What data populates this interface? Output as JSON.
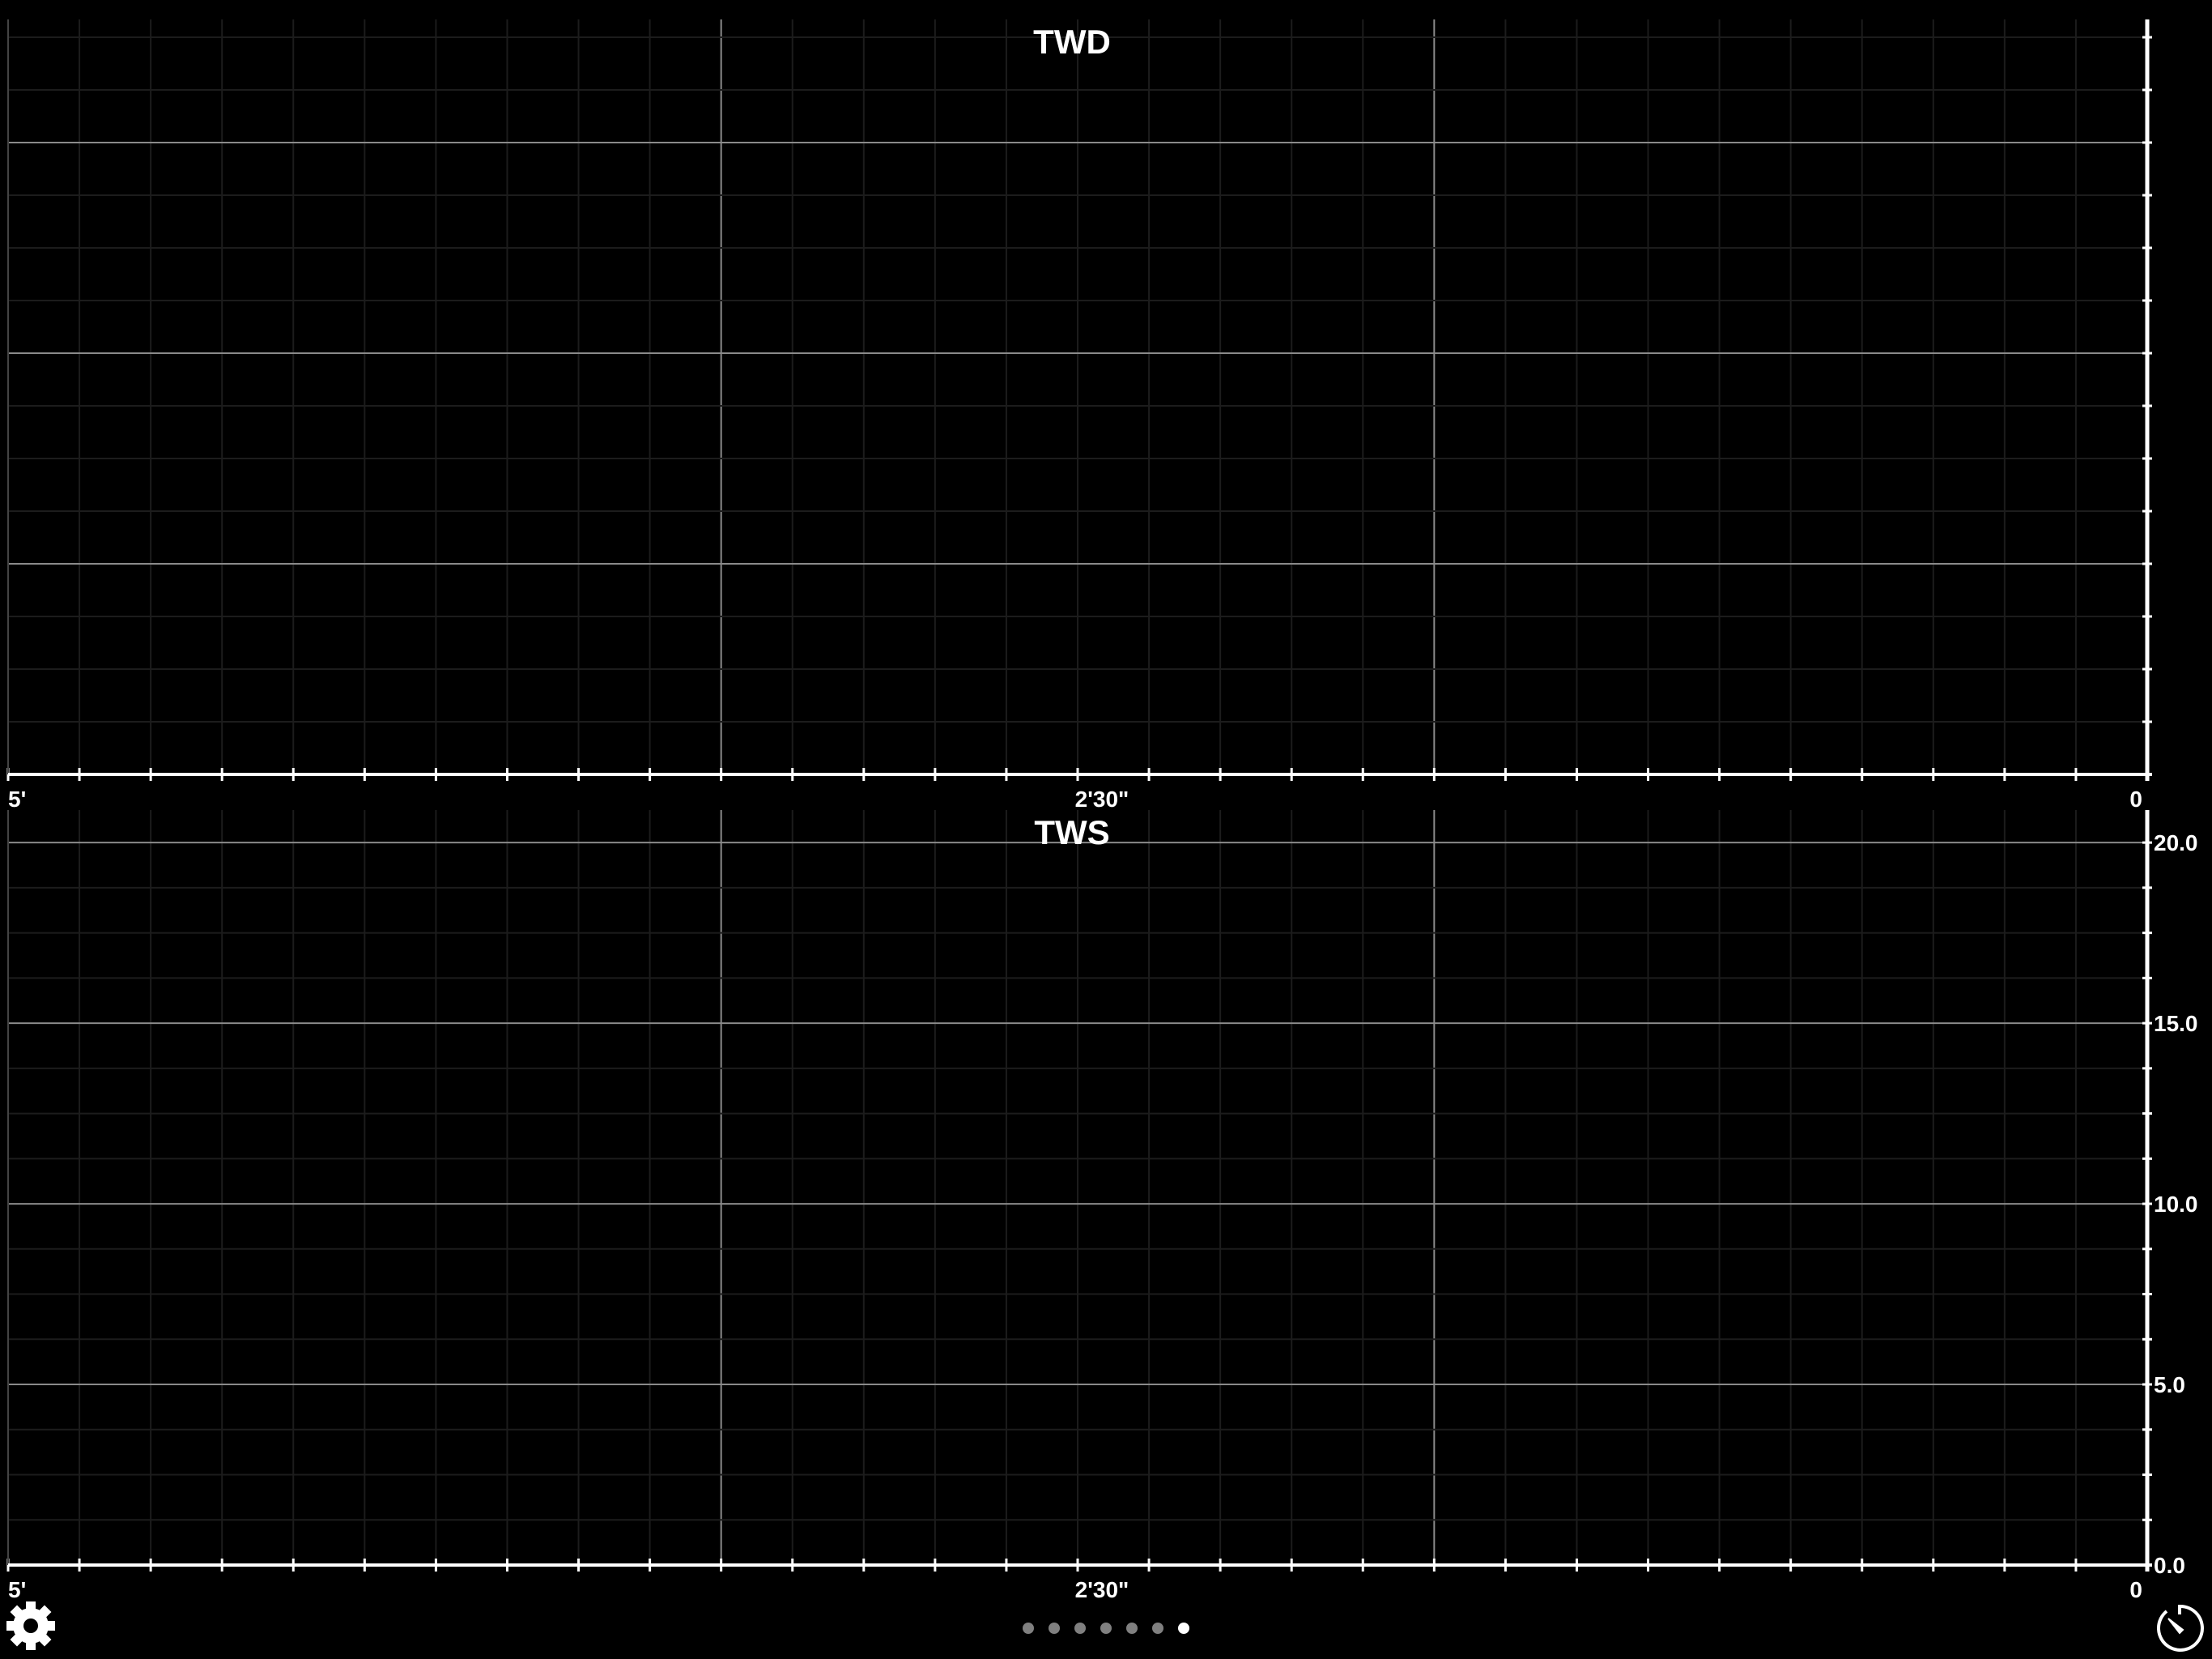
{
  "chart_data": [
    {
      "type": "line",
      "title": "TWD",
      "x_tick_labels": [
        "5'",
        "2'30\"",
        "0"
      ],
      "y_tick_labels": [],
      "series": [],
      "grid": true
    },
    {
      "type": "line",
      "title": "TWS",
      "x_tick_labels": [
        "5'",
        "2'30\"",
        "0"
      ],
      "y_ticks": [
        0,
        5,
        10,
        15,
        20
      ],
      "y_tick_labels": [
        "0.0",
        "5.0",
        "10.0",
        "15.0",
        "20.0"
      ],
      "ylim": [
        0,
        20.9
      ],
      "series": [],
      "grid": true
    }
  ],
  "footer": {
    "settings_icon": "gear-icon",
    "timer_icon": "stopwatch-icon",
    "page_count": 7,
    "active_page": 7
  },
  "colors": {
    "background": "#000000",
    "axis": "#ffffff",
    "major_grid": "#8a8a8a",
    "minor_grid": "#1c1c1c",
    "dot_inactive": "#808080",
    "dot_active": "#ffffff"
  }
}
